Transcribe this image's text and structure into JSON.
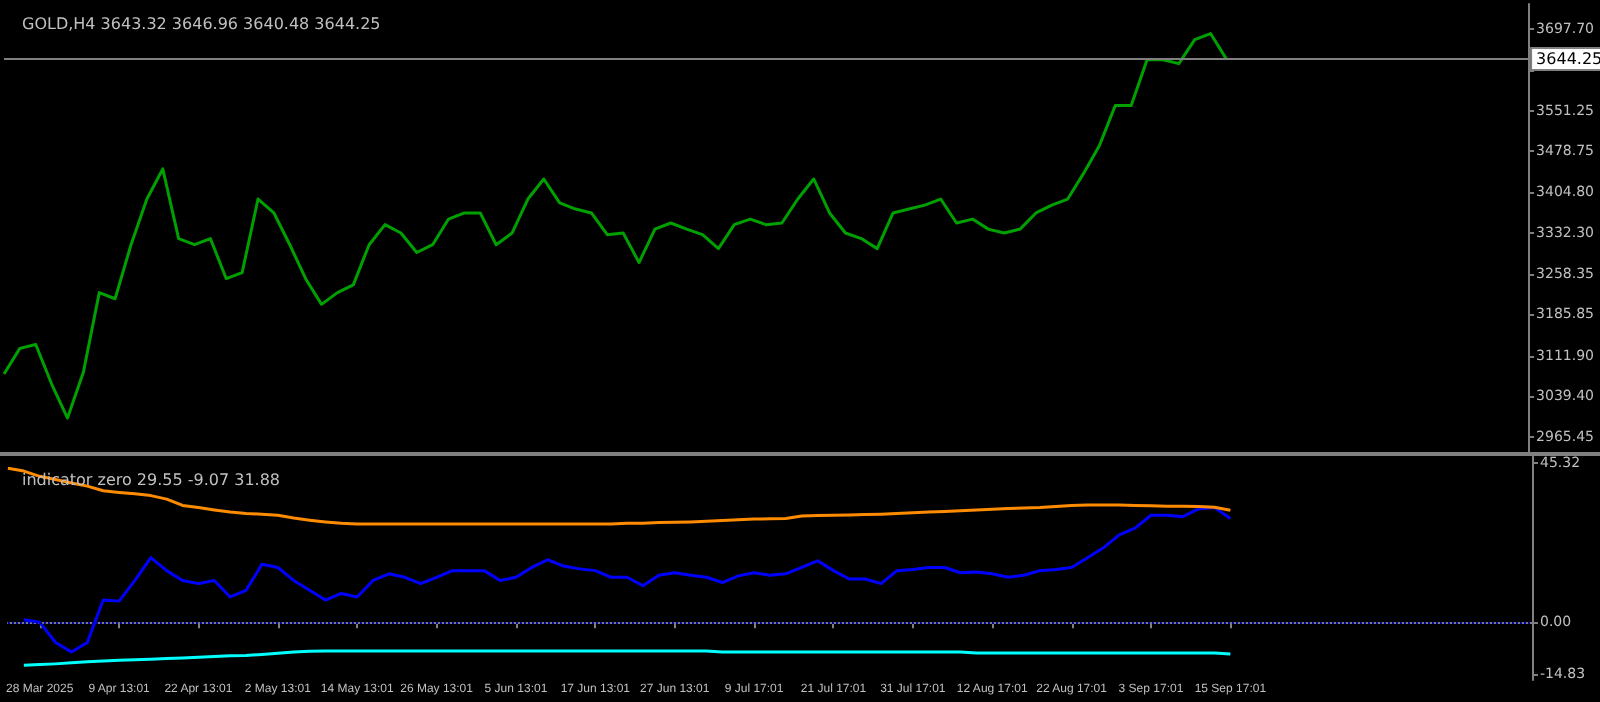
{
  "chart_data": [
    {
      "type": "line",
      "title": "GOLD,H4 3643.32 3646.96 3640.48 3644.25",
      "tick_labels": "y",
      "categories": [
        null,
        null,
        null,
        null,
        null,
        null,
        null,
        null,
        null,
        null,
        null,
        null,
        null,
        null,
        null,
        null,
        null,
        null,
        null,
        null,
        null,
        null,
        null,
        null,
        null,
        null,
        null,
        null,
        null,
        null,
        null,
        null,
        null,
        null,
        null,
        null,
        null,
        null,
        null,
        null,
        null,
        null,
        null,
        null,
        null,
        null,
        null,
        null,
        null,
        null,
        null,
        null,
        null,
        null,
        null,
        null,
        null,
        null,
        null,
        null,
        null,
        null,
        null,
        null,
        null,
        null,
        null,
        null,
        null,
        null,
        null,
        null,
        null,
        null,
        null,
        null,
        null,
        null,
        null,
        null,
        null,
        null,
        null,
        null,
        null,
        null,
        null,
        null,
        null,
        null,
        null,
        null,
        null,
        null,
        null,
        null,
        null
      ],
      "series": [
        {
          "color": "#00a000",
          "values": [
            3079,
            3125,
            3132,
            3061,
            3000,
            3082,
            3225,
            3214,
            3311,
            3393,
            3447,
            3322,
            3311,
            3322,
            3250,
            3261,
            3393,
            3368,
            3311,
            3250,
            3204,
            3225,
            3239,
            3311,
            3347,
            3332,
            3297,
            3311,
            3357,
            3368,
            3368,
            3311,
            3332,
            3393,
            3429,
            3386,
            3375,
            3368,
            3329,
            3332,
            3279,
            3339,
            3350,
            3339,
            3329,
            3304,
            3347,
            3357,
            3347,
            3350,
            3393,
            3429,
            3368,
            3332,
            3322,
            3304,
            3368,
            3375,
            3382,
            3393,
            3350,
            3357,
            3339,
            3332,
            3339,
            3368,
            3382,
            3393,
            3439,
            3489,
            3561,
            3561,
            3643,
            3643,
            3636,
            3679,
            3690,
            3644,
            null,
            null,
            null,
            null,
            null,
            null,
            null,
            null,
            null,
            null,
            null,
            null,
            null,
            null,
            null,
            null,
            null,
            null,
            null
          ]
        }
      ],
      "ylim": [
        2939,
        3743
      ],
      "yticks": [
        {
          "value": 3697.7,
          "label": "3697.70"
        },
        {
          "value": 3625.2,
          "label": null
        },
        {
          "value": 3551.25,
          "label": "3551.25"
        },
        {
          "value": 3478.75,
          "label": "3478.75"
        },
        {
          "value": 3404.8,
          "label": "3404.80"
        },
        {
          "value": 3332.3,
          "label": "3332.30"
        },
        {
          "value": 3258.35,
          "label": "3258.35"
        },
        {
          "value": 3185.85,
          "label": "3185.85"
        },
        {
          "value": 3111.9,
          "label": "3111.90"
        },
        {
          "value": 3039.4,
          "label": "3039.40"
        },
        {
          "value": 2965.45,
          "label": "2965.45"
        }
      ],
      "ref_lines": [
        {
          "axis": "y",
          "value": 3644.25,
          "label": "3644.25",
          "color": "#808080",
          "line_style": "solid"
        }
      ]
    },
    {
      "type": "line",
      "title": "indicator zero 29.55 -9.07 31.88",
      "categories": [
        null,
        null,
        "28 Mar 2025",
        null,
        null,
        null,
        null,
        "9 Apr 13:01",
        null,
        null,
        null,
        null,
        "22 Apr 13:01",
        null,
        null,
        null,
        null,
        "2 May 13:01",
        null,
        null,
        null,
        null,
        "14 May 13:01",
        null,
        null,
        null,
        null,
        "26 May 13:01",
        null,
        null,
        null,
        null,
        "5 Jun 13:01",
        null,
        null,
        null,
        null,
        "17 Jun 13:01",
        null,
        null,
        null,
        null,
        "27 Jun 13:01",
        null,
        null,
        null,
        null,
        "9 Jul 17:01",
        null,
        null,
        null,
        null,
        "21 Jul 17:01",
        null,
        null,
        null,
        null,
        "31 Jul 17:01",
        null,
        null,
        null,
        null,
        "12 Aug 17:01",
        null,
        null,
        null,
        null,
        "22 Aug 17:01",
        null,
        null,
        null,
        null,
        "3 Sep 17:01",
        null,
        null,
        null,
        null,
        "15 Sep 17:01",
        null,
        null,
        null,
        null,
        null,
        null,
        null,
        null,
        null,
        null,
        null,
        null,
        null,
        null,
        null,
        null,
        null,
        null,
        null
      ],
      "series": [
        {
          "color": "#0000ff",
          "values": [
            null,
            0.7,
            0,
            -5.8,
            -8.5,
            -5.8,
            6.3,
            6.0,
            11.9,
            18.4,
            14.7,
            11.9,
            11.0,
            11.9,
            7.2,
            9.1,
            16.5,
            15.6,
            11.9,
            9.1,
            6.3,
            8.2,
            7.2,
            11.9,
            13.8,
            12.8,
            11.0,
            12.8,
            14.7,
            14.7,
            14.7,
            11.9,
            12.8,
            15.6,
            17.8,
            16.0,
            15.2,
            14.7,
            12.8,
            12.8,
            10.4,
            13.4,
            14.1,
            13.4,
            12.8,
            11.3,
            13.2,
            14.1,
            13.4,
            13.8,
            15.6,
            17.5,
            14.7,
            12.3,
            12.3,
            11.0,
            14.7,
            15.0,
            15.6,
            15.6,
            14.1,
            14.3,
            13.8,
            12.8,
            13.4,
            14.7,
            15.0,
            15.6,
            18.4,
            21.2,
            24.9,
            26.8,
            30.5,
            30.5,
            30.1,
            32.3,
            32.7,
            29.6,
            null,
            null,
            null,
            null,
            null,
            null,
            null,
            null,
            null,
            null,
            null,
            null,
            null,
            null,
            null,
            null,
            null,
            null,
            null
          ]
        },
        {
          "color": "#ff8c00",
          "values": [
            43.9,
            43.1,
            41.6,
            40.7,
            39.7,
            38.8,
            37.5,
            37.0,
            36.6,
            36.1,
            35.1,
            33.3,
            32.7,
            32.0,
            31.4,
            31.0,
            30.8,
            30.5,
            29.7,
            29.1,
            28.6,
            28.2,
            28.0,
            28.0,
            28.0,
            28.0,
            28.0,
            28.0,
            28.0,
            28.0,
            28.0,
            28.0,
            28.0,
            28.0,
            28.0,
            28.0,
            28.0,
            28.0,
            28.0,
            28.2,
            28.2,
            28.4,
            28.5,
            28.6,
            28.8,
            29.0,
            29.2,
            29.4,
            29.5,
            29.6,
            30.3,
            30.4,
            30.5,
            30.6,
            30.7,
            30.8,
            31.0,
            31.2,
            31.4,
            31.6,
            31.8,
            32.0,
            32.2,
            32.4,
            32.6,
            32.7,
            33.0,
            33.3,
            33.4,
            33.4,
            33.4,
            33.3,
            33.2,
            33.1,
            33.1,
            33.0,
            32.8,
            31.9,
            null,
            null,
            null,
            null,
            null,
            null,
            null,
            null,
            null,
            null,
            null,
            null,
            null,
            null,
            null,
            null,
            null,
            null,
            null
          ]
        },
        {
          "color": "#00ffff",
          "values": [
            null,
            -12.3,
            -12.1,
            -11.9,
            -11.6,
            -11.3,
            -11.1,
            -10.9,
            -10.7,
            -10.6,
            -10.4,
            -10.2,
            -10.0,
            -9.8,
            -9.6,
            -9.5,
            -9.2,
            -8.9,
            -8.5,
            -8.3,
            -8.2,
            -8.2,
            -8.2,
            -8.2,
            -8.2,
            -8.2,
            -8.2,
            -8.2,
            -8.2,
            -8.2,
            -8.2,
            -8.2,
            -8.2,
            -8.2,
            -8.2,
            -8.2,
            -8.2,
            -8.2,
            -8.2,
            -8.2,
            -8.2,
            -8.2,
            -8.2,
            -8.2,
            -8.2,
            -8.5,
            -8.5,
            -8.5,
            -8.5,
            -8.5,
            -8.5,
            -8.5,
            -8.5,
            -8.5,
            -8.5,
            -8.5,
            -8.5,
            -8.5,
            -8.5,
            -8.5,
            -8.5,
            -8.8,
            -8.8,
            -8.8,
            -8.8,
            -8.8,
            -8.8,
            -8.8,
            -8.8,
            -8.8,
            -8.8,
            -8.8,
            -8.8,
            -8.8,
            -8.8,
            -8.8,
            -8.8,
            -9.1,
            null,
            null,
            null,
            null,
            null,
            null,
            null,
            null,
            null,
            null,
            null,
            null,
            null,
            null,
            null,
            null,
            null,
            null,
            null
          ]
        }
      ],
      "ylim": [
        -16.5,
        47.4
      ],
      "yticks": [
        {
          "value": 45.32,
          "label": "45.32"
        },
        {
          "value": 0,
          "label": "0.00"
        },
        {
          "value": -14.83,
          "label": "-14.83"
        }
      ],
      "ref_lines": [
        {
          "axis": "y",
          "value": 0,
          "color": "#0000a0",
          "line_style": "dotted"
        }
      ]
    }
  ]
}
